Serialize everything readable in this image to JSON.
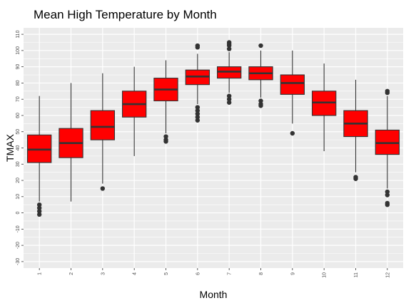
{
  "chart_data": {
    "type": "boxplot",
    "title": "Mean High Temperature by Month",
    "xlabel": "Month",
    "ylabel": "TMAX",
    "categories": [
      "1",
      "2",
      "3",
      "4",
      "5",
      "6",
      "7",
      "8",
      "9",
      "10",
      "11",
      "12"
    ],
    "yticks": [
      -30,
      -20,
      -10,
      0,
      10,
      20,
      30,
      40,
      50,
      60,
      70,
      80,
      90,
      100,
      110
    ],
    "ylim": [
      -34,
      114
    ],
    "grid": true,
    "box_fill": "#ff0000",
    "box_line": "#333333",
    "panel_bg": "#ebebeb",
    "boxes": [
      {
        "month": "1",
        "lower_whisker": 7,
        "q1": 31,
        "median": 39,
        "q3": 48,
        "upper_whisker": 72,
        "outliers": [
          -1,
          1,
          3,
          5
        ]
      },
      {
        "month": "2",
        "lower_whisker": 7,
        "q1": 34,
        "median": 43,
        "q3": 52,
        "upper_whisker": 80,
        "outliers": []
      },
      {
        "month": "3",
        "lower_whisker": 18,
        "q1": 45,
        "median": 53,
        "q3": 63,
        "upper_whisker": 86,
        "outliers": [
          15
        ]
      },
      {
        "month": "4",
        "lower_whisker": 35,
        "q1": 59,
        "median": 67,
        "q3": 75,
        "upper_whisker": 90,
        "outliers": []
      },
      {
        "month": "5",
        "lower_whisker": 49,
        "q1": 69,
        "median": 76,
        "q3": 83,
        "upper_whisker": 94,
        "outliers": [
          44,
          45,
          47
        ]
      },
      {
        "month": "6",
        "lower_whisker": 67,
        "q1": 79,
        "median": 84,
        "q3": 88,
        "upper_whisker": 98,
        "outliers": [
          57,
          59,
          61,
          63,
          65,
          102,
          103
        ]
      },
      {
        "month": "7",
        "lower_whisker": 74,
        "q1": 83,
        "median": 87,
        "q3": 90,
        "upper_whisker": 99,
        "outliers": [
          68,
          70,
          72,
          101,
          103,
          104,
          105
        ]
      },
      {
        "month": "8",
        "lower_whisker": 71,
        "q1": 82,
        "median": 86,
        "q3": 90,
        "upper_whisker": 100,
        "outliers": [
          66,
          67,
          69,
          103
        ]
      },
      {
        "month": "9",
        "lower_whisker": 55,
        "q1": 73,
        "median": 80,
        "q3": 85,
        "upper_whisker": 100,
        "outliers": [
          49
        ]
      },
      {
        "month": "10",
        "lower_whisker": 38,
        "q1": 60,
        "median": 68,
        "q3": 75,
        "upper_whisker": 92,
        "outliers": []
      },
      {
        "month": "11",
        "lower_whisker": 25,
        "q1": 47,
        "median": 55,
        "q3": 63,
        "upper_whisker": 82,
        "outliers": [
          21,
          22
        ]
      },
      {
        "month": "12",
        "lower_whisker": 15,
        "q1": 36,
        "median": 43,
        "q3": 51,
        "upper_whisker": 72,
        "outliers": [
          5,
          6,
          11,
          13,
          74,
          75
        ]
      }
    ]
  }
}
